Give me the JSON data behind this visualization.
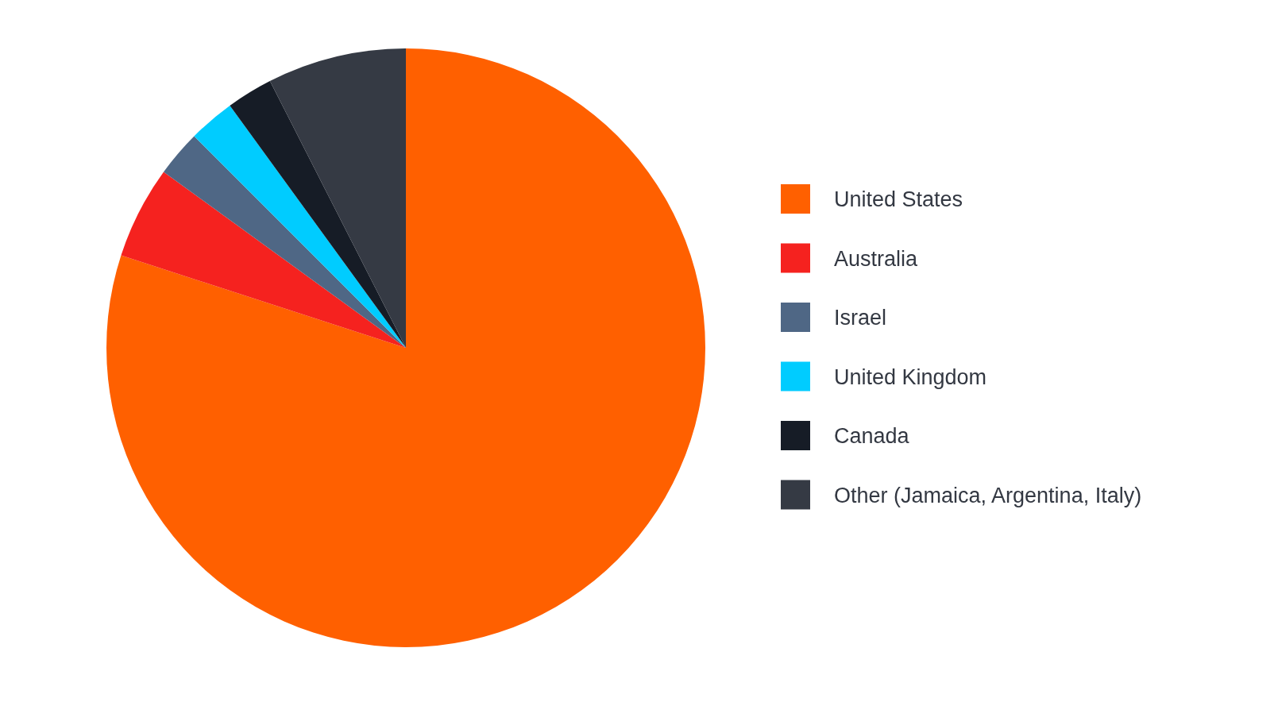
{
  "chart_data": {
    "type": "pie",
    "categories": [
      "United States",
      "Australia",
      "Israel",
      "United Kingdom",
      "Canada",
      "Other (Jamaica, Argentina, Italy)"
    ],
    "values": [
      80,
      5,
      2.5,
      2.5,
      2.5,
      7.5
    ],
    "colors": [
      "#ff6000",
      "#f5221f",
      "#4f6785",
      "#00ccff",
      "#161c26",
      "#353a44"
    ],
    "legend": "right"
  }
}
